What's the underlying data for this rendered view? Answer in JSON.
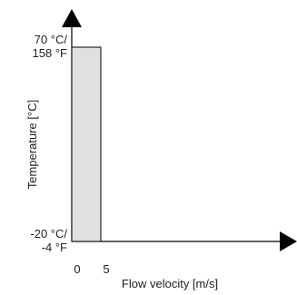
{
  "chart_data": {
    "type": "area",
    "xlabel": "Flow velocity [m/s]",
    "ylabel": "Temperature [°C]",
    "x_ticks": [
      "0",
      "5"
    ],
    "y_ticks": [
      {
        "value": 70,
        "line1": "70 °C/",
        "line2": "158 °F"
      },
      {
        "value": -20,
        "line1": "-20 °C/",
        "line2": "-4 °F"
      }
    ],
    "region": {
      "x": [
        0,
        5
      ],
      "y": [
        -20,
        70
      ]
    },
    "colors": {
      "fill": "#e0e0e0",
      "stroke": "#000000",
      "axis": "#000000"
    }
  }
}
